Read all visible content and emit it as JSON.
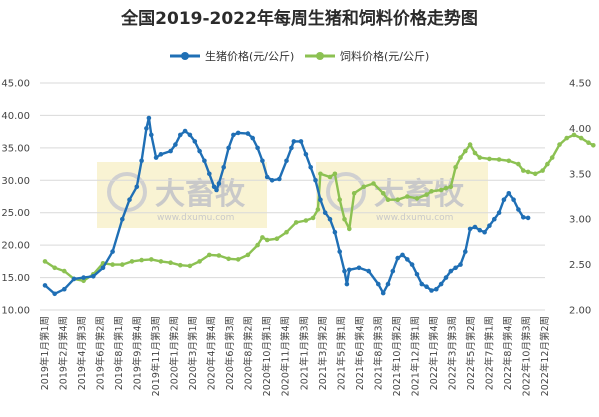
{
  "chart_data": {
    "type": "line",
    "title": "全国2019-2022年每周生猪和饲料价格走势图",
    "y_left_range": [
      10,
      45
    ],
    "y_left_ticks": [
      "10.00",
      "15.00",
      "20.00",
      "25.00",
      "30.00",
      "35.00",
      "40.00",
      "45.00"
    ],
    "y_right_range": [
      2.0,
      4.5
    ],
    "y_right_ticks": [
      "2.00",
      "2.50",
      "3.00",
      "3.50",
      "4.00",
      "4.50"
    ],
    "grid": "horizontal",
    "legend_position": "top-center",
    "x_tick_labels": [
      "2019年1月第1周",
      "2019年2月第4周",
      "2019年4月第3周",
      "2019年6月第2周",
      "2019年8月第1周",
      "2019年9月第4周",
      "2019年11月第3周",
      "2020年1月第2周",
      "2020年3月第1周",
      "2020年4月第4周",
      "2020年6月第3周",
      "2020年8月第2周",
      "2020年10月第1周",
      "2020年11月第4周",
      "2021年1月第3周",
      "2021年3月第2周",
      "2021年5月第1周",
      "2021年6月第4周",
      "2021年8月第3周",
      "2021年10月第2周",
      "2021年12月第1周",
      "2022年1月第4周",
      "2022年3月第3周",
      "2022年5月第2周",
      "2022年7月第1周",
      "2022年8月第4周",
      "2022年10月第3周",
      "2022年12月第2周"
    ],
    "x_week_index_range": [
      0,
      207
    ],
    "series": [
      {
        "name": "生猪价格(元/公斤)",
        "axis": "left",
        "color": "#1f6fb5",
        "points": [
          [
            0,
            13.8
          ],
          [
            4,
            12.5
          ],
          [
            8,
            13.2
          ],
          [
            12,
            14.8
          ],
          [
            16,
            15.0
          ],
          [
            20,
            15.2
          ],
          [
            24,
            16.5
          ],
          [
            28,
            19
          ],
          [
            32,
            24
          ],
          [
            35,
            27
          ],
          [
            38,
            29
          ],
          [
            40,
            33
          ],
          [
            42,
            38
          ],
          [
            43,
            39.6
          ],
          [
            44,
            37
          ],
          [
            46,
            33.5
          ],
          [
            48,
            34
          ],
          [
            52,
            34.5
          ],
          [
            54,
            35.5
          ],
          [
            56,
            37
          ],
          [
            58,
            37.6
          ],
          [
            60,
            37
          ],
          [
            62,
            36
          ],
          [
            64,
            34.5
          ],
          [
            66,
            33
          ],
          [
            68,
            31
          ],
          [
            70,
            29
          ],
          [
            71,
            28.5
          ],
          [
            72,
            29.5
          ],
          [
            74,
            32
          ],
          [
            76,
            35
          ],
          [
            78,
            37
          ],
          [
            80,
            37.3
          ],
          [
            84,
            37.2
          ],
          [
            86,
            36.5
          ],
          [
            88,
            35
          ],
          [
            90,
            33
          ],
          [
            92,
            30.5
          ],
          [
            94,
            30
          ],
          [
            97,
            30.2
          ],
          [
            100,
            33
          ],
          [
            102,
            35
          ],
          [
            103,
            36
          ],
          [
            106,
            36
          ],
          [
            108,
            34
          ],
          [
            110,
            32
          ],
          [
            112,
            30
          ],
          [
            114,
            27
          ],
          [
            116,
            25
          ],
          [
            118,
            24
          ],
          [
            120,
            22
          ],
          [
            122,
            19
          ],
          [
            124,
            16
          ],
          [
            125,
            14
          ],
          [
            126,
            16.2
          ],
          [
            130,
            16.5
          ],
          [
            134,
            16
          ],
          [
            138,
            14
          ],
          [
            140,
            12.6
          ],
          [
            142,
            14
          ],
          [
            144,
            16
          ],
          [
            146,
            18
          ],
          [
            148,
            18.5
          ],
          [
            150,
            17.8
          ],
          [
            152,
            17
          ],
          [
            154,
            15.5
          ],
          [
            156,
            14
          ],
          [
            158,
            13.6
          ],
          [
            160,
            13
          ],
          [
            162,
            13.2
          ],
          [
            164,
            14
          ],
          [
            166,
            15
          ],
          [
            168,
            16
          ],
          [
            170,
            16.5
          ],
          [
            172,
            17
          ],
          [
            174,
            19
          ],
          [
            176,
            22.5
          ],
          [
            178,
            22.8
          ],
          [
            180,
            22.3
          ],
          [
            182,
            22
          ],
          [
            184,
            23
          ],
          [
            186,
            24
          ],
          [
            188,
            25
          ],
          [
            190,
            27
          ],
          [
            192,
            28
          ],
          [
            194,
            27
          ],
          [
            196,
            25.5
          ],
          [
            198,
            24.3
          ],
          [
            200,
            24.2
          ]
        ]
      },
      {
        "name": "饲料价格(元/公斤)",
        "axis": "left",
        "color": "#8cc152",
        "points": [
          [
            0,
            17.5
          ],
          [
            4,
            16.5
          ],
          [
            8,
            16.0
          ],
          [
            12,
            14.8
          ],
          [
            16,
            14.5
          ],
          [
            20,
            15.5
          ],
          [
            24,
            17.2
          ],
          [
            28,
            17
          ],
          [
            32,
            17
          ],
          [
            36,
            17.5
          ],
          [
            40,
            17.7
          ],
          [
            44,
            17.8
          ],
          [
            48,
            17.5
          ],
          [
            52,
            17.3
          ],
          [
            56,
            16.9
          ],
          [
            60,
            16.8
          ],
          [
            64,
            17.5
          ],
          [
            68,
            18.5
          ],
          [
            72,
            18.4
          ],
          [
            76,
            17.9
          ],
          [
            80,
            17.8
          ],
          [
            84,
            18.5
          ],
          [
            88,
            20
          ],
          [
            90,
            21.2
          ],
          [
            92,
            20.8
          ],
          [
            96,
            21
          ],
          [
            100,
            22
          ],
          [
            104,
            23.5
          ],
          [
            108,
            23.8
          ],
          [
            111,
            24.2
          ],
          [
            113,
            25.5
          ],
          [
            114,
            31
          ],
          [
            118,
            30.5
          ],
          [
            120,
            31
          ],
          [
            122,
            27
          ],
          [
            124,
            24
          ],
          [
            126,
            22.5
          ],
          [
            128,
            28
          ],
          [
            132,
            29
          ],
          [
            136,
            29.5
          ],
          [
            140,
            28
          ],
          [
            142,
            27
          ],
          [
            146,
            27
          ],
          [
            150,
            27.5
          ],
          [
            154,
            27.2
          ],
          [
            158,
            27.8
          ],
          [
            160,
            28.3
          ],
          [
            164,
            28.5
          ],
          [
            166,
            28.8
          ],
          [
            168,
            29
          ],
          [
            170,
            32
          ],
          [
            172,
            33.5
          ],
          [
            174,
            34.5
          ],
          [
            176,
            35.5
          ],
          [
            178,
            34.2
          ],
          [
            180,
            33.5
          ],
          [
            184,
            33.3
          ],
          [
            188,
            33.2
          ],
          [
            192,
            33
          ],
          [
            196,
            32.5
          ],
          [
            198,
            31.5
          ],
          [
            200,
            31.3
          ],
          [
            203,
            31
          ],
          [
            206,
            31.5
          ],
          [
            208,
            32.5
          ],
          [
            210,
            33.5
          ],
          [
            213,
            35.5
          ],
          [
            216,
            36.5
          ],
          [
            219,
            37
          ],
          [
            222,
            36.5
          ],
          [
            225,
            35.8
          ],
          [
            227,
            35.4
          ]
        ]
      }
    ]
  },
  "watermark": {
    "brand": "大畜牧",
    "url": "www.dxumu.com"
  }
}
